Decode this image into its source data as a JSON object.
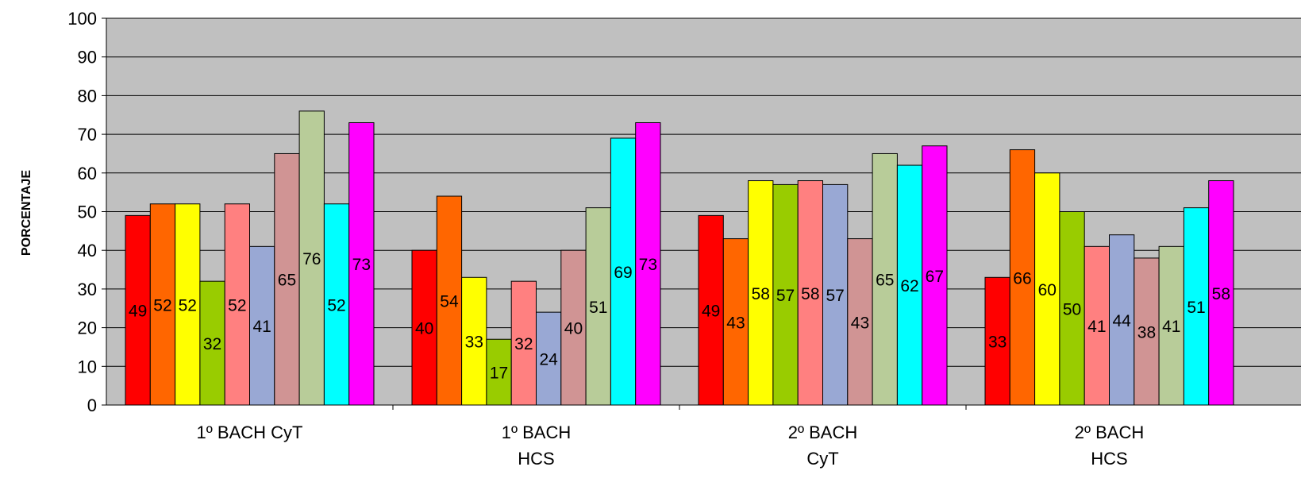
{
  "chart_data": {
    "type": "bar",
    "ylabel": "PORCENTAJE",
    "ylim": [
      0,
      100
    ],
    "yticks": [
      "0",
      "10",
      "20",
      "30",
      "40",
      "50",
      "60",
      "70",
      "80",
      "90",
      "100"
    ],
    "grid": true,
    "categories": [
      [
        "1º BACH CyT"
      ],
      [
        "1º BACH",
        "HCS"
      ],
      [
        "2º BACH",
        "CyT"
      ],
      [
        "2º BACH",
        "HCS"
      ]
    ],
    "series": [
      {
        "color": "#ff0000",
        "values": [
          49,
          40,
          49,
          33
        ]
      },
      {
        "color": "#ff6600",
        "values": [
          52,
          54,
          43,
          66
        ]
      },
      {
        "color": "#ffff00",
        "values": [
          52,
          33,
          58,
          60
        ]
      },
      {
        "color": "#99cc00",
        "values": [
          32,
          17,
          57,
          50
        ]
      },
      {
        "color": "#ff8080",
        "values": [
          52,
          32,
          58,
          41
        ]
      },
      {
        "color": "#99a8d4",
        "values": [
          41,
          24,
          57,
          44
        ]
      },
      {
        "color": "#d09494",
        "values": [
          65,
          40,
          43,
          38
        ]
      },
      {
        "color": "#b8cc99",
        "values": [
          76,
          51,
          65,
          41
        ]
      },
      {
        "color": "#00ffff",
        "values": [
          52,
          69,
          62,
          51
        ]
      },
      {
        "color": "#ff00ff",
        "values": [
          73,
          73,
          67,
          58
        ]
      }
    ],
    "plot_background": "#c0c0c0"
  }
}
